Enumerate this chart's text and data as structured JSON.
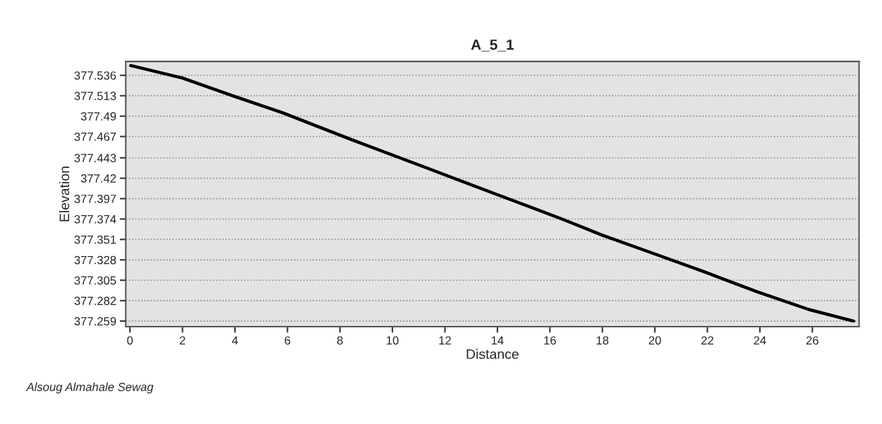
{
  "chart_data": {
    "type": "line",
    "title": "A_5_1",
    "xlabel": "Distance",
    "ylabel": "Elevation",
    "annotations": [
      "Alsoug Almahale Sewag"
    ],
    "x": [
      0.03,
      2.0,
      4.0,
      5.8,
      8.49,
      11.18,
      13.86,
      16.55,
      17.98,
      19.96,
      21.93,
      23.9,
      25.87,
      27.57
    ],
    "series": [
      {
        "color": "#000000",
        "values": [
          377.547,
          377.533,
          377.512,
          377.494,
          377.463,
          377.433,
          377.403,
          377.373,
          377.356,
          377.335,
          377.314,
          377.292,
          377.272,
          377.259
        ]
      }
    ],
    "xlim": [
      -0.16,
      27.78
    ],
    "ylim": [
      377.2527,
      377.5516
    ],
    "xticks": [
      0,
      2,
      4,
      6,
      8,
      10,
      12,
      14,
      16,
      18,
      20,
      22,
      24,
      26
    ],
    "yticks": [
      377.259,
      377.282,
      377.305,
      377.328,
      377.351,
      377.374,
      377.397,
      377.42,
      377.443,
      377.467,
      377.49,
      377.513,
      377.536
    ],
    "grid": "y",
    "marker": "none",
    "line_style": "solid"
  }
}
